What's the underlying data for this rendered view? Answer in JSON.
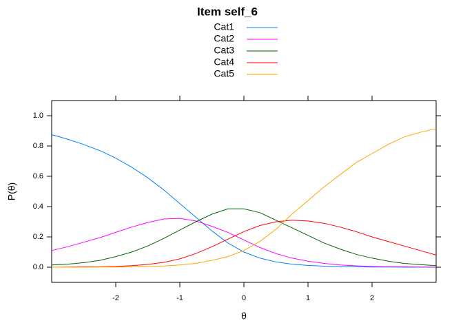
{
  "chart_data": {
    "type": "line",
    "title": "Item self_6",
    "x_label": "θ",
    "y_label": "P(θ)",
    "x": [
      -3,
      -2.75,
      -2.5,
      -2.25,
      -2,
      -1.75,
      -1.5,
      -1.25,
      -1,
      -0.75,
      -0.5,
      -0.25,
      0,
      0.25,
      0.5,
      0.75,
      1,
      1.25,
      1.5,
      1.75,
      2,
      2.25,
      2.5,
      2.75,
      3
    ],
    "series": [
      {
        "name": "Cat1",
        "color": "#0080ff",
        "values": [
          0.875,
          0.845,
          0.81,
          0.77,
          0.72,
          0.66,
          0.59,
          0.51,
          0.42,
          0.33,
          0.24,
          0.16,
          0.1,
          0.06,
          0.035,
          0.02,
          0.012,
          0.007,
          0.004,
          0.002,
          0.001,
          0.001,
          0,
          0,
          0
        ]
      },
      {
        "name": "Cat2",
        "color": "#ff00ff",
        "values": [
          0.11,
          0.135,
          0.165,
          0.195,
          0.23,
          0.265,
          0.295,
          0.318,
          0.322,
          0.305,
          0.27,
          0.23,
          0.18,
          0.13,
          0.09,
          0.06,
          0.04,
          0.025,
          0.015,
          0.009,
          0.005,
          0.003,
          0.002,
          0.001,
          0.001
        ]
      },
      {
        "name": "Cat3",
        "color": "#006400",
        "values": [
          0.015,
          0.02,
          0.03,
          0.045,
          0.07,
          0.1,
          0.14,
          0.19,
          0.245,
          0.3,
          0.35,
          0.385,
          0.385,
          0.36,
          0.31,
          0.26,
          0.21,
          0.16,
          0.12,
          0.085,
          0.06,
          0.04,
          0.025,
          0.017,
          0.01
        ]
      },
      {
        "name": "Cat4",
        "color": "#ff0000",
        "values": [
          0,
          0.001,
          0.002,
          0.003,
          0.005,
          0.01,
          0.018,
          0.032,
          0.055,
          0.09,
          0.135,
          0.185,
          0.235,
          0.275,
          0.3,
          0.31,
          0.305,
          0.29,
          0.265,
          0.235,
          0.2,
          0.17,
          0.14,
          0.11,
          0.08
        ]
      },
      {
        "name": "Cat5",
        "color": "#ffa500",
        "values": [
          0,
          0,
          0,
          0.001,
          0.001,
          0.002,
          0.004,
          0.008,
          0.015,
          0.025,
          0.045,
          0.07,
          0.11,
          0.17,
          0.25,
          0.35,
          0.44,
          0.53,
          0.61,
          0.69,
          0.75,
          0.81,
          0.86,
          0.89,
          0.915
        ]
      }
    ],
    "xlim": [
      -3,
      3
    ],
    "xticks": [
      -2,
      -1,
      0,
      1,
      2
    ],
    "ylim": [
      -0.1,
      1.1
    ],
    "yticks": [
      {
        "value": 0,
        "label": "0.0"
      },
      {
        "value": 0.2,
        "label": "0.2"
      },
      {
        "value": 0.4,
        "label": "0.4"
      },
      {
        "value": 0.6,
        "label": "0.6"
      },
      {
        "value": 0.8,
        "label": "0.8"
      },
      {
        "value": 1,
        "label": "1.0"
      }
    ]
  }
}
